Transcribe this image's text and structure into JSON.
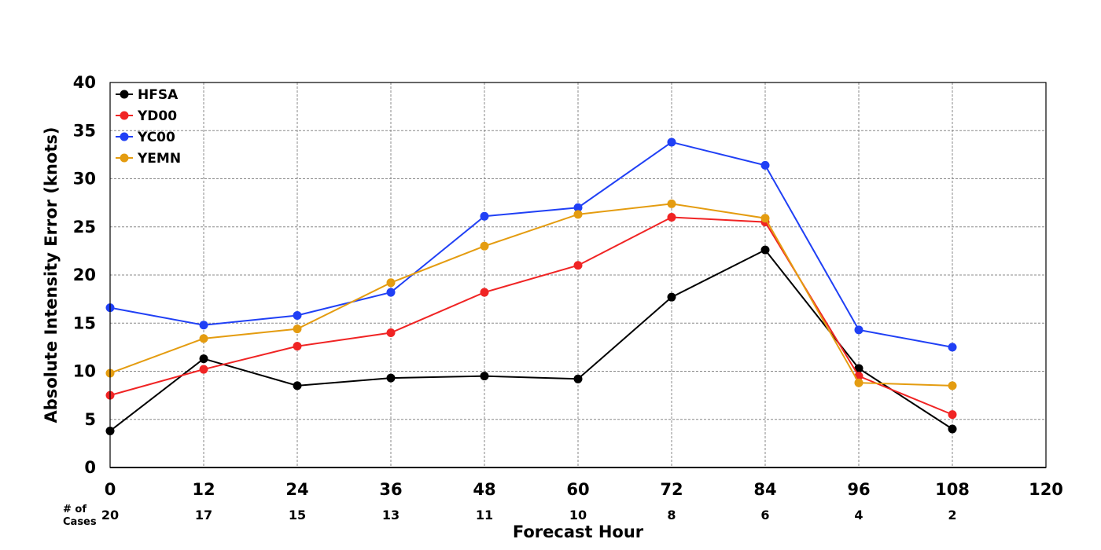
{
  "chart_data": {
    "type": "line",
    "xlabel": "Forecast Hour",
    "ylabel": "Absolute Intensity Error (knots)",
    "xlim": [
      0,
      120
    ],
    "ylim": [
      0,
      40
    ],
    "x_ticks": [
      "0",
      "12",
      "24",
      "36",
      "48",
      "60",
      "72",
      "84",
      "96",
      "108",
      "120"
    ],
    "y_ticks": [
      "0",
      "5",
      "10",
      "15",
      "20",
      "25",
      "30",
      "35",
      "40"
    ],
    "grid": true,
    "legend_position": "top-left",
    "cases_label_line1": "# of",
    "cases_label_line2": "Cases",
    "cases": [
      {
        "x": 0,
        "n": "20"
      },
      {
        "x": 12,
        "n": "17"
      },
      {
        "x": 24,
        "n": "15"
      },
      {
        "x": 36,
        "n": "13"
      },
      {
        "x": 48,
        "n": "11"
      },
      {
        "x": 60,
        "n": "10"
      },
      {
        "x": 72,
        "n": "8"
      },
      {
        "x": 84,
        "n": "6"
      },
      {
        "x": 96,
        "n": "4"
      },
      {
        "x": 108,
        "n": "2"
      }
    ],
    "x": [
      0,
      12,
      24,
      36,
      48,
      60,
      72,
      84,
      96,
      108
    ],
    "series": [
      {
        "name": "HFSA",
        "color": "#000000",
        "values": [
          3.8,
          11.3,
          8.5,
          9.3,
          9.5,
          9.2,
          17.7,
          22.6,
          10.3,
          4.0
        ]
      },
      {
        "name": "YD00",
        "color": "#f02424",
        "values": [
          7.5,
          10.2,
          12.6,
          14.0,
          18.2,
          21.0,
          26.0,
          25.5,
          9.5,
          5.5
        ]
      },
      {
        "name": "YC00",
        "color": "#2040f5",
        "values": [
          16.6,
          14.8,
          15.8,
          18.2,
          26.1,
          27.0,
          33.8,
          31.4,
          14.3,
          12.5
        ]
      },
      {
        "name": "YEMN",
        "color": "#e49c10",
        "values": [
          9.8,
          13.4,
          14.4,
          19.2,
          23.0,
          26.3,
          27.4,
          25.9,
          8.8,
          8.5
        ]
      }
    ]
  }
}
